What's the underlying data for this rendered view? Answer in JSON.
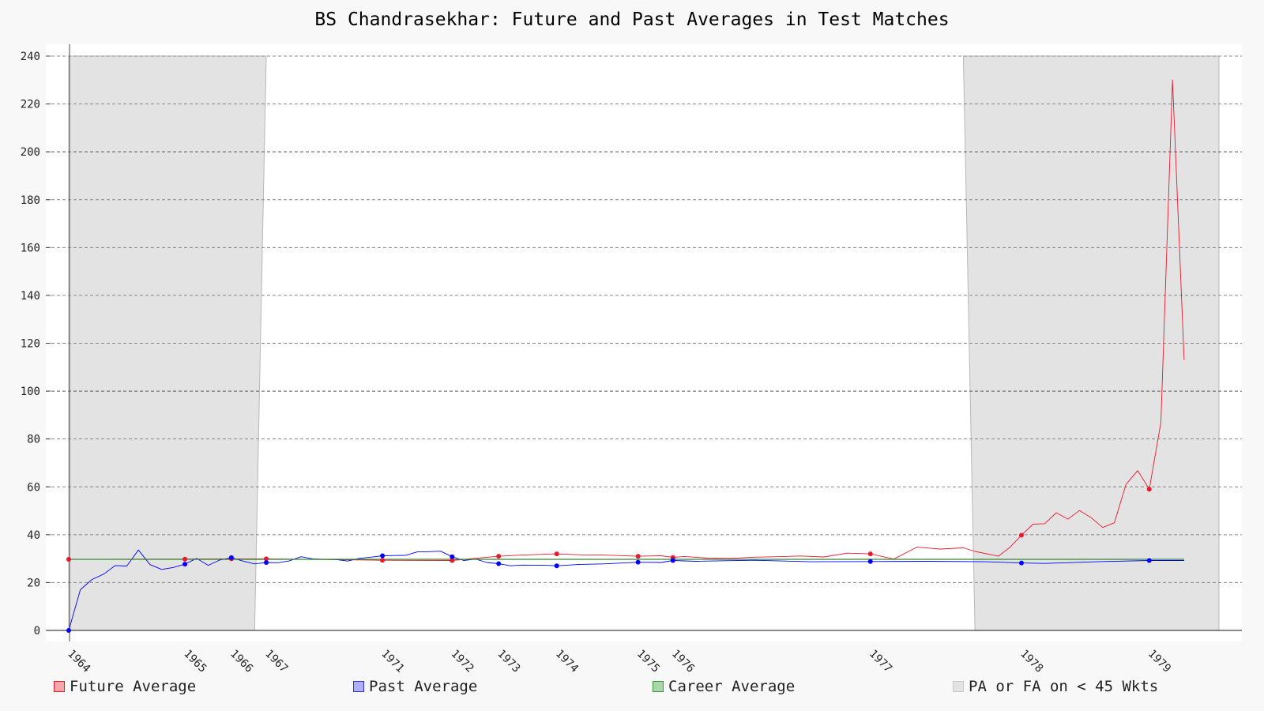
{
  "title": "BS Chandrasekhar: Future and Past Averages in Test Matches",
  "colors": {
    "background": "#f8f8f8",
    "plot_background": "#ffffff",
    "shade": "#e3e3e3",
    "future": "#e8192c",
    "past": "#0000ff",
    "career": "#2e8b2e"
  },
  "legend": [
    {
      "label": "Future Average",
      "swatch_fill": "#f4a8a8",
      "swatch_border": "#e8192c"
    },
    {
      "label": "Past Average",
      "swatch_fill": "#b0b0f8",
      "swatch_border": "#3030e0"
    },
    {
      "label": "Career Average",
      "swatch_fill": "#a8d8a8",
      "swatch_border": "#3a9a3a"
    },
    {
      "label": "PA or FA on < 45 Wkts",
      "swatch_fill": "#e3e3e3",
      "swatch_border": "#c8c8c8"
    }
  ],
  "chart_data": {
    "type": "line",
    "title": "BS Chandrasekhar: Future and Past Averages in Test Matches",
    "xlabel": "",
    "ylabel": "",
    "ylim": [
      0,
      240
    ],
    "yticks": [
      0,
      20,
      40,
      60,
      80,
      100,
      120,
      140,
      160,
      180,
      200,
      220,
      240
    ],
    "grid": true,
    "legend_position": "bottom",
    "x_unit": "test match index",
    "xlim": [
      1,
      100
    ],
    "x_year_ticks": [
      {
        "label": "1964",
        "x": 1
      },
      {
        "label": "1965",
        "x": 11
      },
      {
        "label": "1966",
        "x": 15
      },
      {
        "label": "1967",
        "x": 18
      },
      {
        "label": "1971",
        "x": 28
      },
      {
        "label": "1972",
        "x": 34
      },
      {
        "label": "1973",
        "x": 38
      },
      {
        "label": "1974",
        "x": 43
      },
      {
        "label": "1975",
        "x": 50
      },
      {
        "label": "1976",
        "x": 53
      },
      {
        "label": "1977",
        "x": 70
      },
      {
        "label": "1978",
        "x": 83
      },
      {
        "label": "1979",
        "x": 94
      }
    ],
    "shaded_regions": [
      {
        "label": "PA or FA on < 45 Wkts",
        "x_start_top": 1,
        "x_end_top": 18,
        "x_end_bottom": 17
      },
      {
        "label": "PA or FA on < 45 Wkts",
        "x_start_top": 78,
        "x_start_bottom": 79,
        "x_end": 100
      }
    ],
    "series": [
      {
        "name": "Future Average",
        "color": "#e8192c",
        "x": [
          1,
          11,
          15,
          18,
          28,
          34,
          38,
          40,
          43,
          45,
          47,
          50,
          52,
          53,
          54,
          56,
          58,
          60,
          62,
          64,
          66,
          68,
          70,
          72,
          74,
          75,
          76,
          78,
          79,
          81,
          82,
          83,
          84,
          85,
          86,
          87,
          88,
          89,
          90,
          91,
          92,
          93,
          94,
          95,
          96,
          97
        ],
        "values": [
          29.7,
          29.8,
          29.9,
          29.9,
          29.3,
          29.2,
          31.0,
          31.5,
          32.0,
          31.6,
          31.5,
          31.0,
          31.2,
          30.5,
          30.9,
          30.2,
          30.1,
          30.6,
          30.8,
          31.1,
          30.7,
          32.3,
          32.0,
          29.8,
          34.8,
          34.4,
          34.0,
          34.5,
          33.0,
          31.0,
          34.7,
          39.8,
          44.4,
          44.6,
          49.2,
          46.5,
          50.1,
          47.1,
          43.0,
          45.0,
          61.0,
          66.8,
          59.0,
          87.0,
          230.0,
          113.0
        ]
      },
      {
        "name": "Past Average",
        "color": "#0000ff",
        "x": [
          1,
          2,
          3,
          4,
          5,
          6,
          7,
          8,
          9,
          10,
          11,
          12,
          13,
          14,
          15,
          16,
          17,
          18,
          19,
          20,
          21,
          22,
          23,
          24,
          25,
          26,
          27,
          28,
          29,
          30,
          31,
          32,
          33,
          34,
          35,
          36,
          37,
          38,
          39,
          40,
          42,
          43,
          45,
          47,
          50,
          52,
          53,
          55,
          60,
          65,
          70,
          75,
          80,
          83,
          85,
          90,
          94,
          97
        ],
        "values": [
          0.0,
          17.0,
          21.3,
          23.5,
          27.1,
          26.9,
          33.6,
          27.5,
          25.5,
          26.3,
          27.7,
          30.1,
          27.2,
          29.4,
          30.4,
          29.0,
          27.8,
          28.4,
          28.3,
          29.1,
          30.8,
          29.9,
          29.7,
          29.6,
          29.0,
          30.1,
          30.6,
          31.2,
          31.3,
          31.4,
          32.8,
          32.9,
          33.1,
          30.8,
          29.2,
          29.8,
          28.4,
          27.9,
          27.0,
          27.3,
          27.2,
          27.0,
          27.6,
          27.8,
          28.5,
          28.4,
          29.2,
          28.9,
          29.3,
          28.7,
          28.8,
          28.9,
          28.7,
          28.2,
          28.0,
          28.8,
          29.2,
          29.2
        ]
      },
      {
        "name": "Career Average",
        "color": "#2e8b2e",
        "x": [
          1,
          97
        ],
        "values": [
          29.7,
          29.7
        ]
      }
    ],
    "marked_points": {
      "future": {
        "x": [
          1,
          11,
          15,
          18,
          28,
          34,
          38,
          43,
          50,
          53,
          70,
          83,
          94
        ],
        "values": [
          29.7,
          29.8,
          29.9,
          29.9,
          29.3,
          29.2,
          31.0,
          32.0,
          31.0,
          30.5,
          32.0,
          39.8,
          59.0
        ]
      },
      "past": {
        "x": [
          1,
          11,
          15,
          18,
          28,
          34,
          38,
          43,
          50,
          53,
          70,
          83,
          94
        ],
        "values": [
          0.0,
          27.7,
          30.4,
          28.4,
          31.2,
          30.8,
          27.9,
          27.0,
          28.5,
          29.2,
          28.8,
          28.2,
          29.2
        ]
      }
    }
  }
}
